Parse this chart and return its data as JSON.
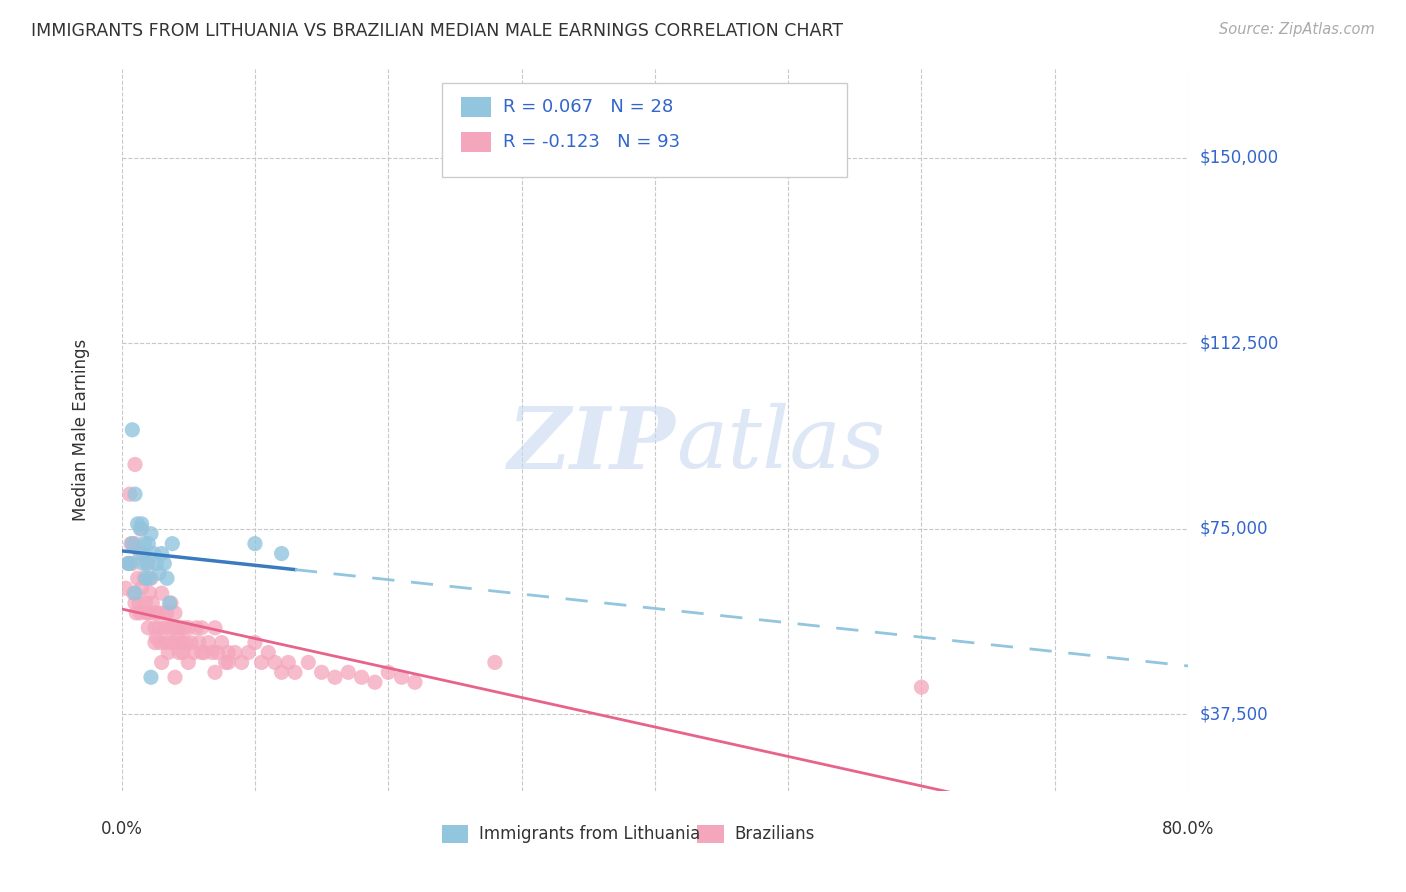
{
  "title": "IMMIGRANTS FROM LITHUANIA VS BRAZILIAN MEDIAN MALE EARNINGS CORRELATION CHART",
  "source": "Source: ZipAtlas.com",
  "ylabel": "Median Male Earnings",
  "y_ticks": [
    37500,
    75000,
    112500,
    150000
  ],
  "y_tick_labels": [
    "$37,500",
    "$75,000",
    "$112,500",
    "$150,000"
  ],
  "xlim": [
    0.0,
    0.8
  ],
  "ylim": [
    22000,
    168000
  ],
  "legend_r1": "R = 0.067",
  "legend_n1": "N = 28",
  "legend_r2": "R = -0.123",
  "legend_n2": "N = 93",
  "color_blue": "#92c5de",
  "color_pink": "#f4a6bc",
  "color_blue_line": "#3a7abf",
  "color_pink_line": "#e8638a",
  "color_text_blue": "#3366cc",
  "watermark_color": "#c8d8f0",
  "background_color": "#ffffff",
  "grid_color": "#c8c8c8",
  "legend_text_color": "#3366cc",
  "title_color": "#333333",
  "axis_label_color": "#333333",
  "lithuania_x": [
    0.005,
    0.008,
    0.01,
    0.012,
    0.014,
    0.016,
    0.018,
    0.02,
    0.022,
    0.024,
    0.026,
    0.028,
    0.03,
    0.032,
    0.034,
    0.036,
    0.015,
    0.017,
    0.019,
    0.021,
    0.038,
    0.1,
    0.12,
    0.008,
    0.006,
    0.01,
    0.014,
    0.022
  ],
  "lithuania_y": [
    68000,
    72000,
    82000,
    76000,
    70000,
    68000,
    65000,
    72000,
    74000,
    70000,
    68000,
    66000,
    70000,
    68000,
    65000,
    60000,
    76000,
    72000,
    68000,
    65000,
    72000,
    72000,
    70000,
    95000,
    68000,
    62000,
    75000,
    45000
  ],
  "brazil_x": [
    0.003,
    0.005,
    0.006,
    0.007,
    0.008,
    0.009,
    0.01,
    0.01,
    0.011,
    0.012,
    0.013,
    0.014,
    0.015,
    0.016,
    0.017,
    0.018,
    0.019,
    0.02,
    0.02,
    0.021,
    0.022,
    0.023,
    0.024,
    0.025,
    0.026,
    0.027,
    0.028,
    0.029,
    0.03,
    0.031,
    0.032,
    0.033,
    0.034,
    0.035,
    0.036,
    0.037,
    0.038,
    0.039,
    0.04,
    0.041,
    0.042,
    0.043,
    0.044,
    0.045,
    0.046,
    0.047,
    0.048,
    0.05,
    0.052,
    0.054,
    0.056,
    0.058,
    0.06,
    0.062,
    0.065,
    0.068,
    0.07,
    0.072,
    0.075,
    0.078,
    0.08,
    0.085,
    0.09,
    0.095,
    0.1,
    0.105,
    0.11,
    0.115,
    0.12,
    0.125,
    0.13,
    0.14,
    0.15,
    0.16,
    0.17,
    0.18,
    0.19,
    0.2,
    0.21,
    0.22,
    0.01,
    0.015,
    0.02,
    0.025,
    0.03,
    0.035,
    0.04,
    0.05,
    0.06,
    0.07,
    0.08,
    0.28,
    0.6
  ],
  "brazil_y": [
    63000,
    68000,
    82000,
    72000,
    68000,
    62000,
    72000,
    60000,
    58000,
    65000,
    60000,
    58000,
    75000,
    70000,
    65000,
    60000,
    58000,
    68000,
    55000,
    62000,
    65000,
    60000,
    58000,
    55000,
    53000,
    58000,
    55000,
    52000,
    62000,
    58000,
    55000,
    52000,
    58000,
    55000,
    52000,
    60000,
    55000,
    52000,
    58000,
    55000,
    53000,
    50000,
    55000,
    52000,
    50000,
    55000,
    52000,
    55000,
    52000,
    50000,
    55000,
    52000,
    55000,
    50000,
    52000,
    50000,
    55000,
    50000,
    52000,
    48000,
    50000,
    50000,
    48000,
    50000,
    52000,
    48000,
    50000,
    48000,
    46000,
    48000,
    46000,
    48000,
    46000,
    45000,
    46000,
    45000,
    44000,
    46000,
    45000,
    44000,
    88000,
    63000,
    58000,
    52000,
    48000,
    50000,
    45000,
    48000,
    50000,
    46000,
    48000,
    48000,
    43000
  ]
}
